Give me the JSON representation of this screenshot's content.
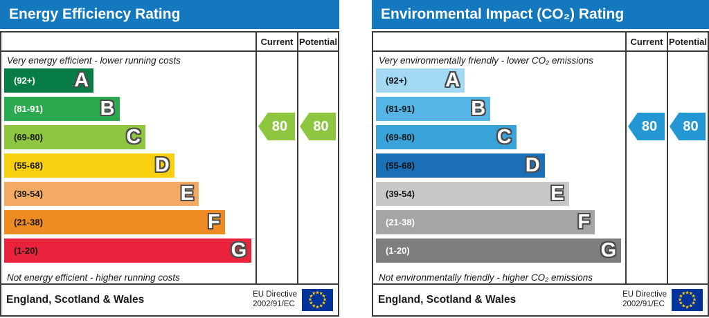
{
  "eu_flag": {
    "bg": "#003399",
    "star": "#ffcc00"
  },
  "charts": [
    {
      "title": "Energy Efficiency Rating",
      "header_color": "#1478be",
      "columns": {
        "current": "Current",
        "potential": "Potential"
      },
      "top_caption": "Very energy efficient - lower running costs",
      "bottom_caption": "Not energy efficient - higher running costs",
      "bands": [
        {
          "range": "(92+)",
          "letter": "A",
          "color": "#077c44",
          "label_color": "#ffffff",
          "width_pct": 35.6
        },
        {
          "range": "(81-91)",
          "letter": "B",
          "color": "#2ba94e",
          "label_color": "#ffffff",
          "width_pct": 45.9
        },
        {
          "range": "(69-80)",
          "letter": "C",
          "color": "#8ec640",
          "label_color": "#1a1a1a",
          "width_pct": 56.3
        },
        {
          "range": "(55-68)",
          "letter": "D",
          "color": "#f7d010",
          "label_color": "#1a1a1a",
          "width_pct": 67.7
        },
        {
          "range": "(39-54)",
          "letter": "E",
          "color": "#f3ab63",
          "label_color": "#1a1a1a",
          "width_pct": 77.4
        },
        {
          "range": "(21-38)",
          "letter": "F",
          "color": "#ee8b23",
          "label_color": "#1a1a1a",
          "width_pct": 87.8
        },
        {
          "range": "(1-20)",
          "letter": "G",
          "color": "#e9233c",
          "label_color": "#1a1a1a",
          "width_pct": 98.4
        }
      ],
      "current": {
        "value": "80",
        "color": "#8ec640"
      },
      "potential": {
        "value": "80",
        "color": "#8ec640"
      },
      "footer": {
        "region": "England, Scotland & Wales",
        "directive_line1": "EU Directive",
        "directive_line2": "2002/91/EC"
      }
    },
    {
      "title": "Environmental Impact (CO₂) Rating",
      "header_color": "#1478be",
      "columns": {
        "current": "Current",
        "potential": "Potential"
      },
      "top_caption": "Very environmentally friendly - lower CO₂ emissions",
      "bottom_caption": "Not environmentally friendly - higher CO₂ emissions",
      "bands": [
        {
          "range": "(92+)",
          "letter": "A",
          "color": "#a3d9f2",
          "label_color": "#1a1a1a",
          "width_pct": 35.6
        },
        {
          "range": "(81-91)",
          "letter": "B",
          "color": "#55b5e5",
          "label_color": "#1a1a1a",
          "width_pct": 45.9
        },
        {
          "range": "(69-80)",
          "letter": "C",
          "color": "#38a2d9",
          "label_color": "#1a1a1a",
          "width_pct": 56.3
        },
        {
          "range": "(55-68)",
          "letter": "D",
          "color": "#1b6fb7",
          "label_color": "#111111",
          "width_pct": 67.7
        },
        {
          "range": "(39-54)",
          "letter": "E",
          "color": "#c8c8c8",
          "label_color": "#1a1a1a",
          "width_pct": 77.4
        },
        {
          "range": "(21-38)",
          "letter": "F",
          "color": "#a5a5a7",
          "label_color": "#ffffff",
          "width_pct": 87.8
        },
        {
          "range": "(1-20)",
          "letter": "G",
          "color": "#7e7e80",
          "label_color": "#ffffff",
          "width_pct": 98.4
        }
      ],
      "current": {
        "value": "80",
        "color": "#2397d3"
      },
      "potential": {
        "value": "80",
        "color": "#2397d3"
      },
      "footer": {
        "region": "England, Scotland & Wales",
        "directive_line1": "EU Directive",
        "directive_line2": "2002/91/EC"
      }
    }
  ],
  "chart_data": [
    {
      "type": "bar",
      "variant": "epc-rating-bands",
      "title": "Energy Efficiency Rating",
      "categories": [
        "A",
        "B",
        "C",
        "D",
        "E",
        "F",
        "G"
      ],
      "band_ranges": [
        "92+",
        "81-91",
        "69-80",
        "55-68",
        "39-54",
        "21-38",
        "1-20"
      ],
      "band_colors": [
        "#077c44",
        "#2ba94e",
        "#8ec640",
        "#f7d010",
        "#f3ab63",
        "#ee8b23",
        "#e9233c"
      ],
      "band_widths_pct": [
        35.6,
        45.9,
        56.3,
        67.7,
        77.4,
        87.8,
        98.4
      ],
      "series": [
        {
          "name": "Current",
          "values": [
            80
          ]
        },
        {
          "name": "Potential",
          "values": [
            80
          ]
        }
      ],
      "current_band": "C",
      "potential_band": "C",
      "value_scale": [
        1,
        100
      ],
      "top_caption": "Very energy efficient - lower running costs",
      "bottom_caption": "Not energy efficient - higher running costs",
      "footer": "England, Scotland & Wales",
      "directive": "EU Directive 2002/91/EC",
      "legend_position": "top-right-columns",
      "grid": false
    },
    {
      "type": "bar",
      "variant": "epc-rating-bands",
      "title": "Environmental Impact (CO₂) Rating",
      "categories": [
        "A",
        "B",
        "C",
        "D",
        "E",
        "F",
        "G"
      ],
      "band_ranges": [
        "92+",
        "81-91",
        "69-80",
        "55-68",
        "39-54",
        "21-38",
        "1-20"
      ],
      "band_colors": [
        "#a3d9f2",
        "#55b5e5",
        "#38a2d9",
        "#1b6fb7",
        "#c8c8c8",
        "#a5a5a7",
        "#7e7e80"
      ],
      "band_widths_pct": [
        35.6,
        45.9,
        56.3,
        67.7,
        77.4,
        87.8,
        98.4
      ],
      "series": [
        {
          "name": "Current",
          "values": [
            80
          ]
        },
        {
          "name": "Potential",
          "values": [
            80
          ]
        }
      ],
      "current_band": "C",
      "potential_band": "C",
      "value_scale": [
        1,
        100
      ],
      "top_caption": "Very environmentally friendly - lower CO₂ emissions",
      "bottom_caption": "Not environmentally friendly - higher CO₂ emissions",
      "footer": "England, Scotland & Wales",
      "directive": "EU Directive 2002/91/EC",
      "legend_position": "top-right-columns",
      "grid": false
    }
  ]
}
